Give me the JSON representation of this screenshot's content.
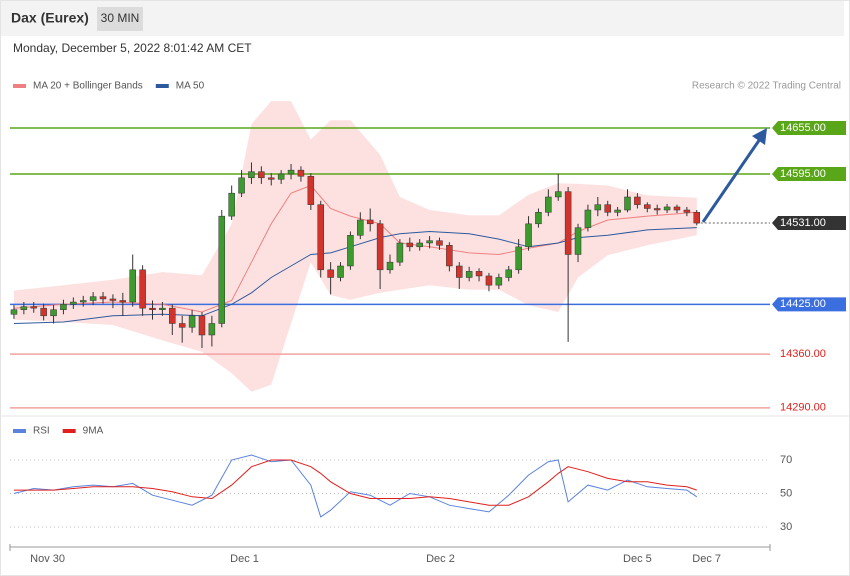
{
  "header": {
    "title": "Dax (Eurex)",
    "interval": "30 MIN",
    "timestamp": "Monday, December 5, 2022 8:01:42 AM CET",
    "credit": "Research © 2022 Trading Central"
  },
  "chart_data": [
    {
      "type": "candlestick",
      "up_color": "#3c9a2f",
      "down_color": "#d0342c",
      "xlim": [
        -0.4,
        76.4
      ],
      "ylim": [
        14280,
        14692
      ],
      "x": [
        0,
        1,
        2,
        3,
        4,
        5,
        6,
        7,
        8,
        9,
        10,
        11,
        12,
        13,
        14,
        15,
        16,
        17,
        18,
        19,
        20,
        21,
        22,
        23,
        24,
        25,
        26,
        27,
        28,
        29,
        30,
        31,
        32,
        33,
        34,
        35,
        36,
        37,
        38,
        39,
        40,
        41,
        42,
        43,
        44,
        45,
        46,
        47,
        48,
        49,
        50,
        51,
        52,
        53,
        54,
        55,
        56,
        57,
        58,
        59,
        60,
        61,
        62,
        63,
        64,
        65,
        66,
        67,
        68,
        69
      ],
      "open": [
        14412,
        14418,
        14422,
        14420,
        14410,
        14418,
        14425,
        14428,
        14430,
        14435,
        14432,
        14430,
        14428,
        14470,
        14420,
        14418,
        14420,
        14400,
        14395,
        14410,
        14385,
        14400,
        14540,
        14570,
        14590,
        14598,
        14590,
        14588,
        14595,
        14600,
        14592,
        14555,
        14470,
        14460,
        14475,
        14515,
        14535,
        14530,
        14470,
        14480,
        14505,
        14500,
        14505,
        14508,
        14502,
        14475,
        14460,
        14468,
        14462,
        14450,
        14460,
        14470,
        14500,
        14530,
        14545,
        14565,
        14572,
        14490,
        14525,
        14548,
        14555,
        14545,
        14548,
        14565,
        14555,
        14550,
        14548,
        14552,
        14548,
        14545
      ],
      "high": [
        14424,
        14428,
        14428,
        14426,
        14424,
        14431,
        14434,
        14436,
        14441,
        14441,
        14438,
        14440,
        14490,
        14476,
        14430,
        14428,
        14425,
        14410,
        14418,
        14415,
        14410,
        14548,
        14580,
        14600,
        14610,
        14605,
        14596,
        14600,
        14608,
        14605,
        14596,
        14560,
        14480,
        14480,
        14520,
        14545,
        14550,
        14535,
        14490,
        14510,
        14512,
        14510,
        14514,
        14512,
        14506,
        14480,
        14474,
        14472,
        14466,
        14465,
        14475,
        14510,
        14540,
        14550,
        14575,
        14595,
        14578,
        14530,
        14555,
        14565,
        14560,
        14552,
        14575,
        14570,
        14558,
        14555,
        14556,
        14555,
        14552,
        14548
      ],
      "low": [
        14406,
        14412,
        14414,
        14404,
        14400,
        14412,
        14419,
        14422,
        14424,
        14426,
        14420,
        14410,
        14422,
        14410,
        14405,
        14410,
        14385,
        14375,
        14388,
        14368,
        14370,
        14395,
        14535,
        14565,
        14582,
        14582,
        14580,
        14582,
        14588,
        14585,
        14548,
        14460,
        14438,
        14455,
        14470,
        14510,
        14520,
        14445,
        14465,
        14475,
        14494,
        14495,
        14498,
        14496,
        14468,
        14445,
        14455,
        14455,
        14442,
        14445,
        14455,
        14465,
        14495,
        14525,
        14540,
        14560,
        14376,
        14480,
        14520,
        14540,
        14540,
        14540,
        14545,
        14550,
        14545,
        14542,
        14544,
        14544,
        14540,
        14528
      ],
      "close": [
        14418,
        14422,
        14420,
        14410,
        14418,
        14425,
        14428,
        14430,
        14435,
        14432,
        14430,
        14428,
        14470,
        14420,
        14418,
        14420,
        14400,
        14395,
        14410,
        14385,
        14400,
        14540,
        14570,
        14590,
        14598,
        14590,
        14588,
        14595,
        14600,
        14592,
        14555,
        14470,
        14460,
        14475,
        14515,
        14535,
        14530,
        14470,
        14480,
        14505,
        14500,
        14505,
        14508,
        14502,
        14475,
        14460,
        14468,
        14462,
        14450,
        14460,
        14470,
        14500,
        14530,
        14545,
        14565,
        14572,
        14490,
        14525,
        14548,
        14555,
        14545,
        14548,
        14565,
        14555,
        14550,
        14548,
        14552,
        14548,
        14545,
        14531
      ],
      "series": [
        {
          "name": "MA 20 + Bollinger Bands",
          "color": "#f08080",
          "band_color": "#fde1e1",
          "x": [
            0,
            5,
            10,
            15,
            19,
            22,
            24,
            26,
            28,
            30,
            32,
            34,
            37,
            39,
            42,
            46,
            49,
            52,
            55,
            57,
            60,
            64,
            69
          ],
          "values": [
            14420,
            14425,
            14428,
            14425,
            14415,
            14430,
            14480,
            14530,
            14570,
            14580,
            14550,
            14540,
            14530,
            14505,
            14500,
            14492,
            14490,
            14498,
            14505,
            14520,
            14535,
            14540,
            14545
          ],
          "upper": [
            14443,
            14450,
            14457,
            14467,
            14463,
            14530,
            14660,
            14690,
            14690,
            14640,
            14665,
            14665,
            14620,
            14565,
            14548,
            14541,
            14541,
            14568,
            14583,
            14582,
            14580,
            14567,
            14564
          ],
          "lower": [
            14405,
            14402,
            14398,
            14378,
            14363,
            14335,
            14311,
            14320,
            14400,
            14480,
            14437,
            14431,
            14440,
            14444,
            14450,
            14444,
            14444,
            14424,
            14415,
            14460,
            14489,
            14502,
            14515
          ]
        },
        {
          "name": "MA 50",
          "color": "#2d5a9e",
          "x": [
            0,
            5,
            10,
            15,
            19,
            22,
            24,
            26,
            28,
            30,
            32,
            34,
            37,
            39,
            42,
            46,
            49,
            52,
            55,
            57,
            60,
            64,
            69
          ],
          "values": [
            14400,
            14402,
            14410,
            14412,
            14410,
            14425,
            14440,
            14460,
            14475,
            14490,
            14492,
            14500,
            14512,
            14517,
            14520,
            14517,
            14510,
            14500,
            14505,
            14512,
            14515,
            14522,
            14525
          ]
        }
      ],
      "levels": [
        {
          "value": 14655,
          "label": "14655.00",
          "color": "#5aa619",
          "boxed": true,
          "style": "solid"
        },
        {
          "value": 14595,
          "label": "14595.00",
          "color": "#5aa619",
          "boxed": true,
          "style": "solid"
        },
        {
          "value": 14531,
          "label": "14531.00",
          "color": "#333333",
          "boxed": true,
          "style": "dotted"
        },
        {
          "value": 14425,
          "label": "14425.00",
          "color": "#3b6fe0",
          "boxed": true,
          "style": "solid"
        },
        {
          "value": 14360,
          "label": "14360.00",
          "color": "#f2a0a0",
          "text_color": "#e0201c",
          "boxed": false,
          "style": "solid"
        },
        {
          "value": 14290,
          "label": "14290.00",
          "color": "#f2a0a0",
          "text_color": "#e0201c",
          "boxed": false,
          "style": "solid"
        }
      ]
    },
    {
      "type": "line",
      "xlim": [
        -0.4,
        76.4
      ],
      "ylim": [
        19,
        82
      ],
      "yticks": [
        30,
        50,
        70
      ],
      "xticks": [
        {
          "value": 3.4,
          "label": "Nov 30"
        },
        {
          "value": 23.3,
          "label": "Dec 1"
        },
        {
          "value": 43.1,
          "label": "Dec 2"
        },
        {
          "value": 63.0,
          "label": "Dec 5"
        },
        {
          "value": 70.0,
          "label": "Dec 7"
        }
      ],
      "x": [
        0,
        2,
        4,
        6,
        8,
        10,
        12,
        14,
        16,
        18,
        20,
        22,
        24,
        26,
        28,
        30,
        31,
        32,
        34,
        36,
        38,
        40,
        42,
        44,
        46,
        48,
        50,
        52,
        54,
        55,
        56,
        58,
        60,
        62,
        64,
        66,
        68,
        69
      ],
      "series": [
        {
          "name": "RSI",
          "color": "#5b82de",
          "values": [
            50,
            53,
            52,
            54,
            55,
            54,
            56,
            49,
            46,
            43,
            49,
            70,
            73,
            69,
            70,
            55,
            36,
            40,
            51,
            49,
            43,
            50,
            48,
            43,
            41,
            39,
            49,
            61,
            69,
            70,
            45,
            55,
            52,
            58,
            54,
            53,
            52,
            48
          ]
        },
        {
          "name": "9MA",
          "color": "#e0201c",
          "values": [
            52,
            52,
            52,
            53,
            54,
            54,
            54,
            53,
            51,
            48,
            47,
            55,
            66,
            70,
            70,
            66,
            62,
            57,
            50,
            47,
            47,
            47,
            48,
            47,
            45,
            43,
            43,
            48,
            57,
            62,
            66,
            63,
            59,
            57,
            57,
            55,
            54,
            52
          ]
        }
      ]
    }
  ]
}
